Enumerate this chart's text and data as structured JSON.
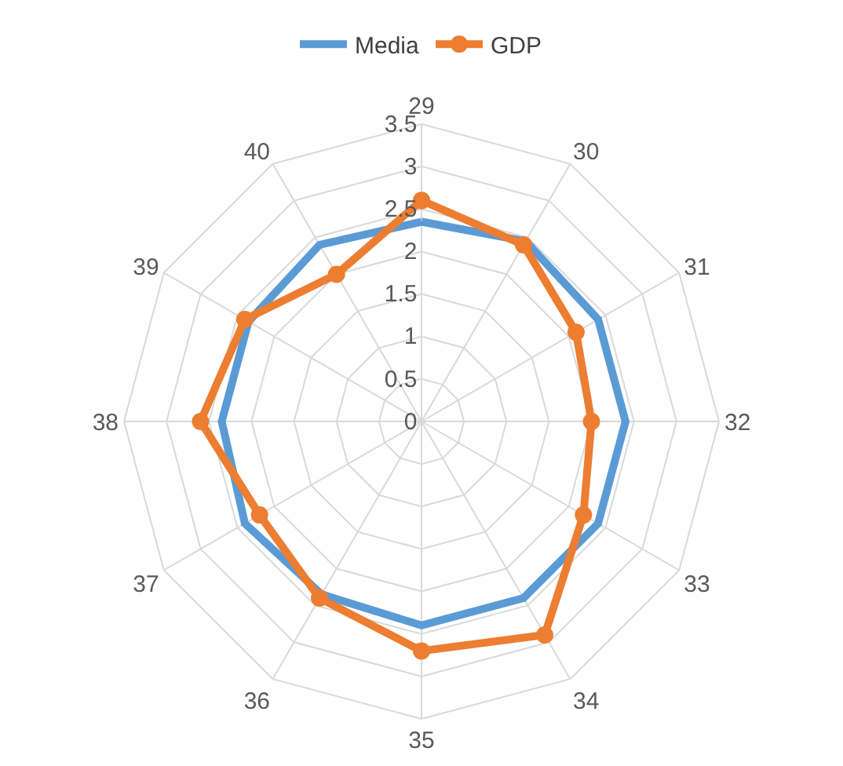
{
  "chart_data": {
    "type": "radar",
    "categories": [
      "29",
      "30",
      "31",
      "32",
      "33",
      "34",
      "35",
      "36",
      "37",
      "38",
      "39",
      "40"
    ],
    "series": [
      {
        "name": "Media",
        "color": "#5b9bd5",
        "marker": "none",
        "values": [
          2.35,
          2.45,
          2.4,
          2.4,
          2.4,
          2.4,
          2.4,
          2.35,
          2.4,
          2.35,
          2.35,
          2.4
        ]
      },
      {
        "name": "GDP",
        "color": "#ed7d31",
        "marker": "circle",
        "values": [
          2.6,
          2.4,
          2.1,
          2.0,
          2.2,
          2.9,
          2.7,
          2.4,
          2.2,
          2.6,
          2.4,
          2.0
        ]
      }
    ],
    "ylim": [
      0,
      3.5
    ],
    "yticks": [
      0,
      0.5,
      1,
      1.5,
      2,
      2.5,
      3,
      3.5
    ],
    "grid": true,
    "legend": "top"
  }
}
